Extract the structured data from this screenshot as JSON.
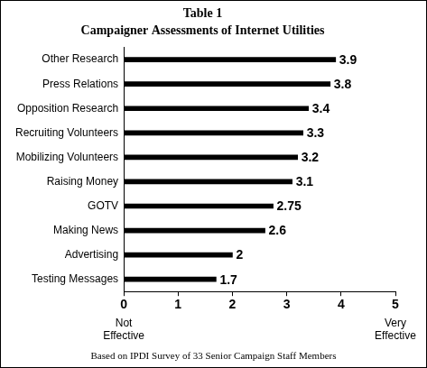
{
  "chart_data": {
    "type": "bar",
    "orientation": "horizontal",
    "title": "Table 1",
    "subtitle": "Campaigner Assessments of Internet Utilities",
    "categories": [
      "Other Research",
      "Press Relations",
      "Opposition Research",
      "Recruiting Volunteers",
      "Mobilizing Volunteers",
      "Raising Money",
      "GOTV",
      "Making News",
      "Advertising",
      "Testing Messages"
    ],
    "values": [
      3.9,
      3.8,
      3.4,
      3.3,
      3.2,
      3.1,
      2.75,
      2.6,
      2,
      1.7
    ],
    "color": "#000000",
    "xlim": [
      0,
      5
    ],
    "xticks": [
      0,
      1,
      2,
      3,
      4,
      5
    ],
    "grid": false,
    "data_labels": true,
    "annotations": [
      {
        "text": "Not Effective",
        "x": 0
      },
      {
        "text": "Very Effective",
        "x": 5
      }
    ],
    "caption": "Based on IPDI Survey of 33 Senior Campaign Staff Members"
  }
}
